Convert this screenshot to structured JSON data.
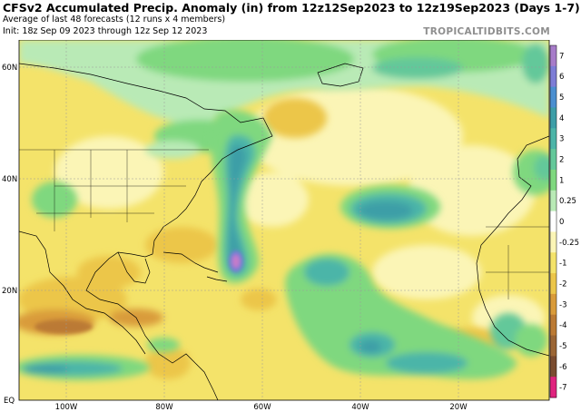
{
  "header": {
    "title": "CFSv2 Accumulated Precip. Anomaly (in) from 12z12Sep2023 to 12z19Sep2023 (Days 1-7)",
    "subtitle": "Average of last 48 forecasts (12 runs x 4 members)",
    "init": "Init: 18z Sep 09 2023 through 12z Sep 12 2023",
    "brand": "TROPICALTIDBITS.COM"
  },
  "map": {
    "lat_labels": [
      "60N",
      "40N",
      "20N",
      "EQ"
    ],
    "lon_labels": [
      "100W",
      "80W",
      "60W",
      "40W",
      "20W"
    ]
  },
  "colorbar": {
    "labels": [
      "7",
      "6",
      "5",
      "4",
      "3",
      "2",
      "1",
      "0.25",
      "0",
      "-0.25",
      "-1",
      "-2",
      "-3",
      "-4",
      "-5",
      "-6",
      "-7"
    ],
    "colors": [
      "#a77cc9",
      "#7d7dd6",
      "#4b8fd0",
      "#3d9ea7",
      "#4cb5a8",
      "#64c89a",
      "#7fd87f",
      "#b9eab6",
      "#ffffff",
      "#fbf5b6",
      "#f4e36a",
      "#ecc64a",
      "#d99b3a",
      "#bb7a34",
      "#9b6635",
      "#7a4c30",
      "#e0237e"
    ]
  },
  "colors": {
    "ocean_dry": "#f3e37a",
    "wet_light": "#b9eab6",
    "wet": "#64c89a",
    "wet_strong": "#3d9ea7",
    "peak": "#c77bc9",
    "dry_strong": "#d99b3a"
  }
}
